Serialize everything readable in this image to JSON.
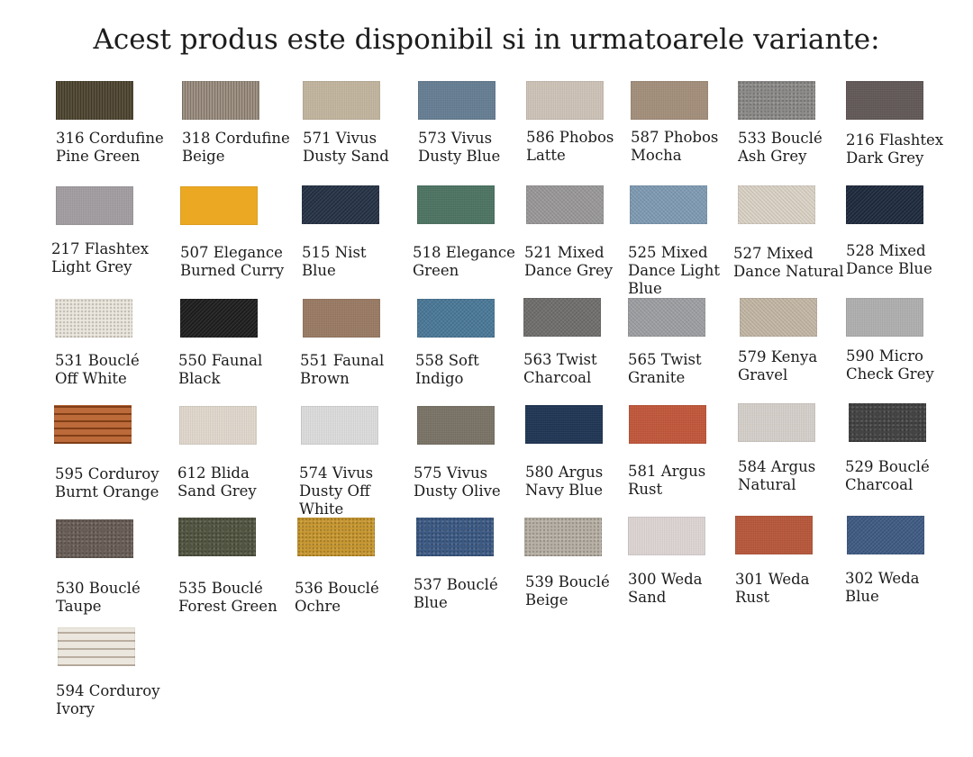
{
  "title": "Acest produs este disponibil si in urmatoarele variante:",
  "swatches": [
    {
      "line1": "316 Cordufine",
      "line2": "Pine Green",
      "line3": "",
      "color": "#4e4530"
    },
    {
      "line1": "318 Cordufine",
      "line2": "Beige",
      "line3": "",
      "color": "#9a8c7e"
    },
    {
      "line1": "571 Vivus",
      "line2": "Dusty Sand",
      "line3": "",
      "color": "#c3b69f"
    },
    {
      "line1": "573 Vivus",
      "line2": "Dusty Blue",
      "line3": "",
      "color": "#667e94"
    },
    {
      "line1": "586 Phobos",
      "line2": "Latte",
      "line3": "",
      "color": "#cfc4b8"
    },
    {
      "line1": "587 Phobos",
      "line2": "Mocha",
      "line3": "",
      "color": "#a48f7b"
    },
    {
      "line1": "533 Bouclé",
      "line2": "Ash Grey",
      "line3": "",
      "color": "#8d8c8a"
    },
    {
      "line1": "216 Flashtex",
      "line2": "Dark Grey",
      "line3": "",
      "color": "#625858"
    },
    {
      "line1": "217 Flashtex",
      "line2": "Light Grey",
      "line3": "",
      "color": "#a39ea2"
    },
    {
      "line1": "507 Elegance",
      "line2": "Burned Curry",
      "line3": "",
      "color": "#eba823"
    },
    {
      "line1": "515 Nist",
      "line2": "Blue",
      "line3": "",
      "color": "#253245"
    },
    {
      "line1": "518 Elegance",
      "line2": "Green",
      "line3": "",
      "color": "#4d7463"
    },
    {
      "line1": "521 Mixed",
      "line2": "Dance Grey",
      "line3": "",
      "color": "#9a9898"
    },
    {
      "line1": "525 Mixed",
      "line2": "Dance Light",
      "line3": "Blue",
      "color": "#7f9bb3"
    },
    {
      "line1": "527 Mixed",
      "line2": "Dance Natural",
      "line3": "",
      "color": "#dad2c5"
    },
    {
      "line1": "528 Mixed",
      "line2": "Dance Blue",
      "line3": "",
      "color": "#1e2a3d"
    },
    {
      "line1": "531 Bouclé",
      "line2": "Off White",
      "line3": "",
      "color": "#ebe6dc"
    },
    {
      "line1": "550 Faunal",
      "line2": "Black",
      "line3": "",
      "color": "#1e1e1e"
    },
    {
      "line1": "551 Faunal",
      "line2": "Brown",
      "line3": "",
      "color": "#9a7b64"
    },
    {
      "line1": "558 Soft",
      "line2": "Indigo",
      "line3": "",
      "color": "#4a7897"
    },
    {
      "line1": "563 Twist",
      "line2": "Charcoal",
      "line3": "",
      "color": "#6f6e6c"
    },
    {
      "line1": "565 Twist",
      "line2": "Granite",
      "line3": "",
      "color": "#9d9fa2"
    },
    {
      "line1": "579 Kenya",
      "line2": "Gravel",
      "line3": "",
      "color": "#c3b7a5"
    },
    {
      "line1": "590 Micro",
      "line2": "Check Grey",
      "line3": "",
      "color": "#b0b0b0"
    },
    {
      "line1": "595 Corduroy",
      "line2": "Burnt Orange",
      "line3": "",
      "color": "#b3561f"
    },
    {
      "line1": "612 Blida",
      "line2": "Sand Grey",
      "line3": "",
      "color": "#e1d9cd"
    },
    {
      "line1": "574 Vivus",
      "line2": "Dusty Off",
      "line3": "White",
      "color": "#dcdddc"
    },
    {
      "line1": "575 Vivus",
      "line2": "Dusty Olive",
      "line3": "",
      "color": "#7a7366"
    },
    {
      "line1": "580 Argus",
      "line2": "Navy Blue",
      "line3": "",
      "color": "#1f3554"
    },
    {
      "line1": "581 Argus",
      "line2": "Rust",
      "line3": "",
      "color": "#c2573a"
    },
    {
      "line1": "584 Argus",
      "line2": "Natural",
      "line3": "",
      "color": "#d6d0cb"
    },
    {
      "line1": "529 Bouclé",
      "line2": "Charcoal",
      "line3": "",
      "color": "#454545"
    },
    {
      "line1": "530 Bouclé",
      "line2": "Taupe",
      "line3": "",
      "color": "#6a5f58"
    },
    {
      "line1": "535 Bouclé",
      "line2": "Forest Green",
      "line3": "",
      "color": "#525642"
    },
    {
      "line1": "536 Bouclé",
      "line2": "Ochre",
      "line3": "",
      "color": "#c89730"
    },
    {
      "line1": "537 Bouclé",
      "line2": "Blue",
      "line3": "",
      "color": "#3e5b85"
    },
    {
      "line1": "539 Bouclé",
      "line2": "Beige",
      "line3": "",
      "color": "#b7b0a5"
    },
    {
      "line1": "300 Weda",
      "line2": "Sand",
      "line3": "",
      "color": "#ded6d4"
    },
    {
      "line1": "301 Weda",
      "line2": "Rust",
      "line3": "",
      "color": "#b8573a"
    },
    {
      "line1": "302 Weda",
      "line2": "Blue",
      "line3": "",
      "color": "#3e5a82"
    },
    {
      "line1": "594 Corduroy",
      "line2": "Ivory",
      "line3": "",
      "color": "#e6e0d6"
    }
  ]
}
